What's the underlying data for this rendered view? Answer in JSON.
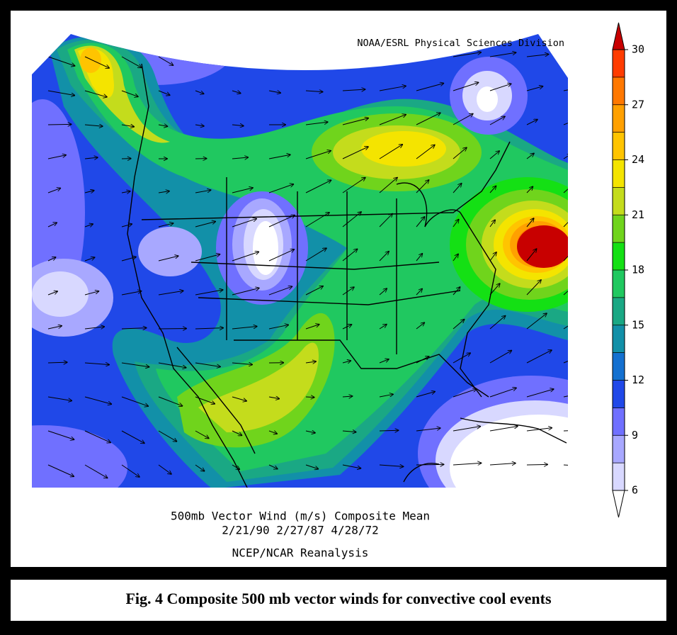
{
  "credit": "NOAA/ESRL Physical Sciences Division",
  "colorbar": {
    "ticks": [
      6,
      9,
      12,
      15,
      18,
      21,
      24,
      27,
      30
    ],
    "colors": [
      "#d8d8ff",
      "#a8a8ff",
      "#7070ff",
      "#2048e8",
      "#1470d0",
      "#1290a8",
      "#1aa884",
      "#20c860",
      "#14e014",
      "#70d41c",
      "#c4dc1c",
      "#f4e400",
      "#ffc400",
      "#ffa000",
      "#ff7800",
      "#ff3c00"
    ],
    "under_color": "#ffffff",
    "over_color": "#c80000"
  },
  "title_lines": [
    "500mb Vector Wind (m/s) Composite Mean",
    "2/21/90 2/27/87 4/28/72",
    "NCEP/NCAR Reanalysis"
  ],
  "caption": "Fig. 4 Composite 500 mb vector winds for convective cool events"
}
